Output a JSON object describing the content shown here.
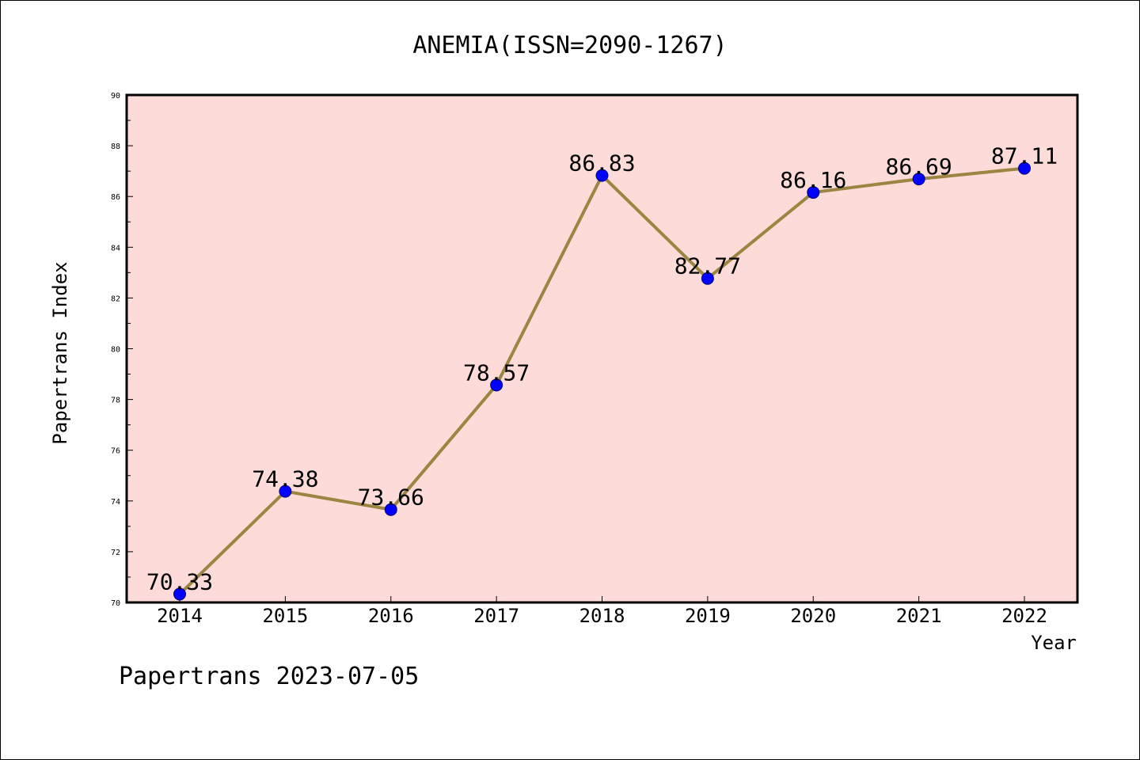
{
  "chart_data": {
    "type": "line",
    "title": "ANEMIA(ISSN=2090-1267)",
    "xlabel": "Year",
    "ylabel": "Papertrans Index",
    "categories": [
      "2014",
      "2015",
      "2016",
      "2017",
      "2018",
      "2019",
      "2020",
      "2021",
      "2022"
    ],
    "series": [
      {
        "values": [
          70.33,
          74.38,
          73.66,
          78.57,
          86.83,
          82.77,
          86.16,
          86.69,
          87.11
        ]
      }
    ],
    "data_labels": [
      "70.33",
      "74.38",
      "73.66",
      "78.57",
      "86.83",
      "82.77",
      "86.16",
      "86.69",
      "87.11"
    ],
    "ylim": [
      70,
      90
    ],
    "yticks": [
      "70",
      "72",
      "74",
      "76",
      "78",
      "80",
      "82",
      "84",
      "86",
      "88",
      "90"
    ],
    "grid": false,
    "legend": "none",
    "colors": {
      "plot_background": "#fddbd8",
      "line": "#9b8540",
      "marker": "#0000ff",
      "marker_edge": "#000080"
    }
  },
  "footer": "Papertrans 2023-07-05"
}
